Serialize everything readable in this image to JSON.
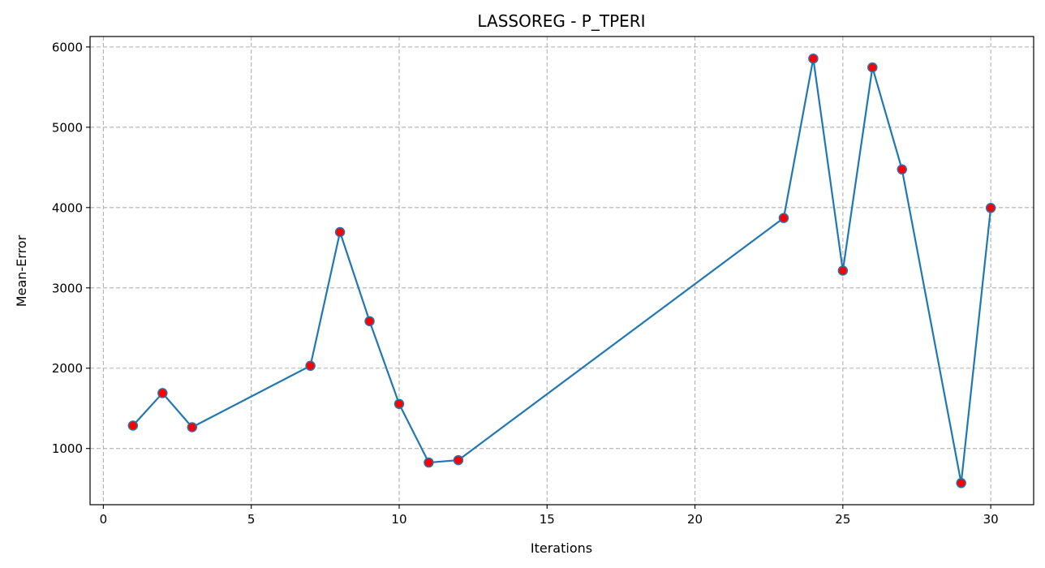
{
  "chart_data": {
    "type": "line",
    "title": "LASSOREG - P_TPERI",
    "xlabel": "Iterations",
    "ylabel": "Mean-Error",
    "xlim": [
      -0.45,
      31.45
    ],
    "ylim": [
      300,
      6130
    ],
    "xticks": [
      0,
      5,
      10,
      15,
      20,
      25,
      30
    ],
    "yticks": [
      1000,
      2000,
      3000,
      4000,
      5000,
      6000
    ],
    "grid": true,
    "grid_style": "dashed",
    "series": [
      {
        "x": [
          1,
          2,
          3,
          7,
          8,
          9,
          10,
          11,
          12,
          23,
          24,
          25,
          26,
          27,
          29,
          30
        ],
        "y": [
          1285,
          1690,
          1265,
          2030,
          3695,
          2585,
          1555,
          825,
          855,
          3870,
          5855,
          3215,
          5745,
          4475,
          570,
          3995
        ],
        "line_color": "#1f77b4",
        "marker_face_color": "#ff0000",
        "marker_edge_color": "#1f77b4"
      }
    ]
  }
}
